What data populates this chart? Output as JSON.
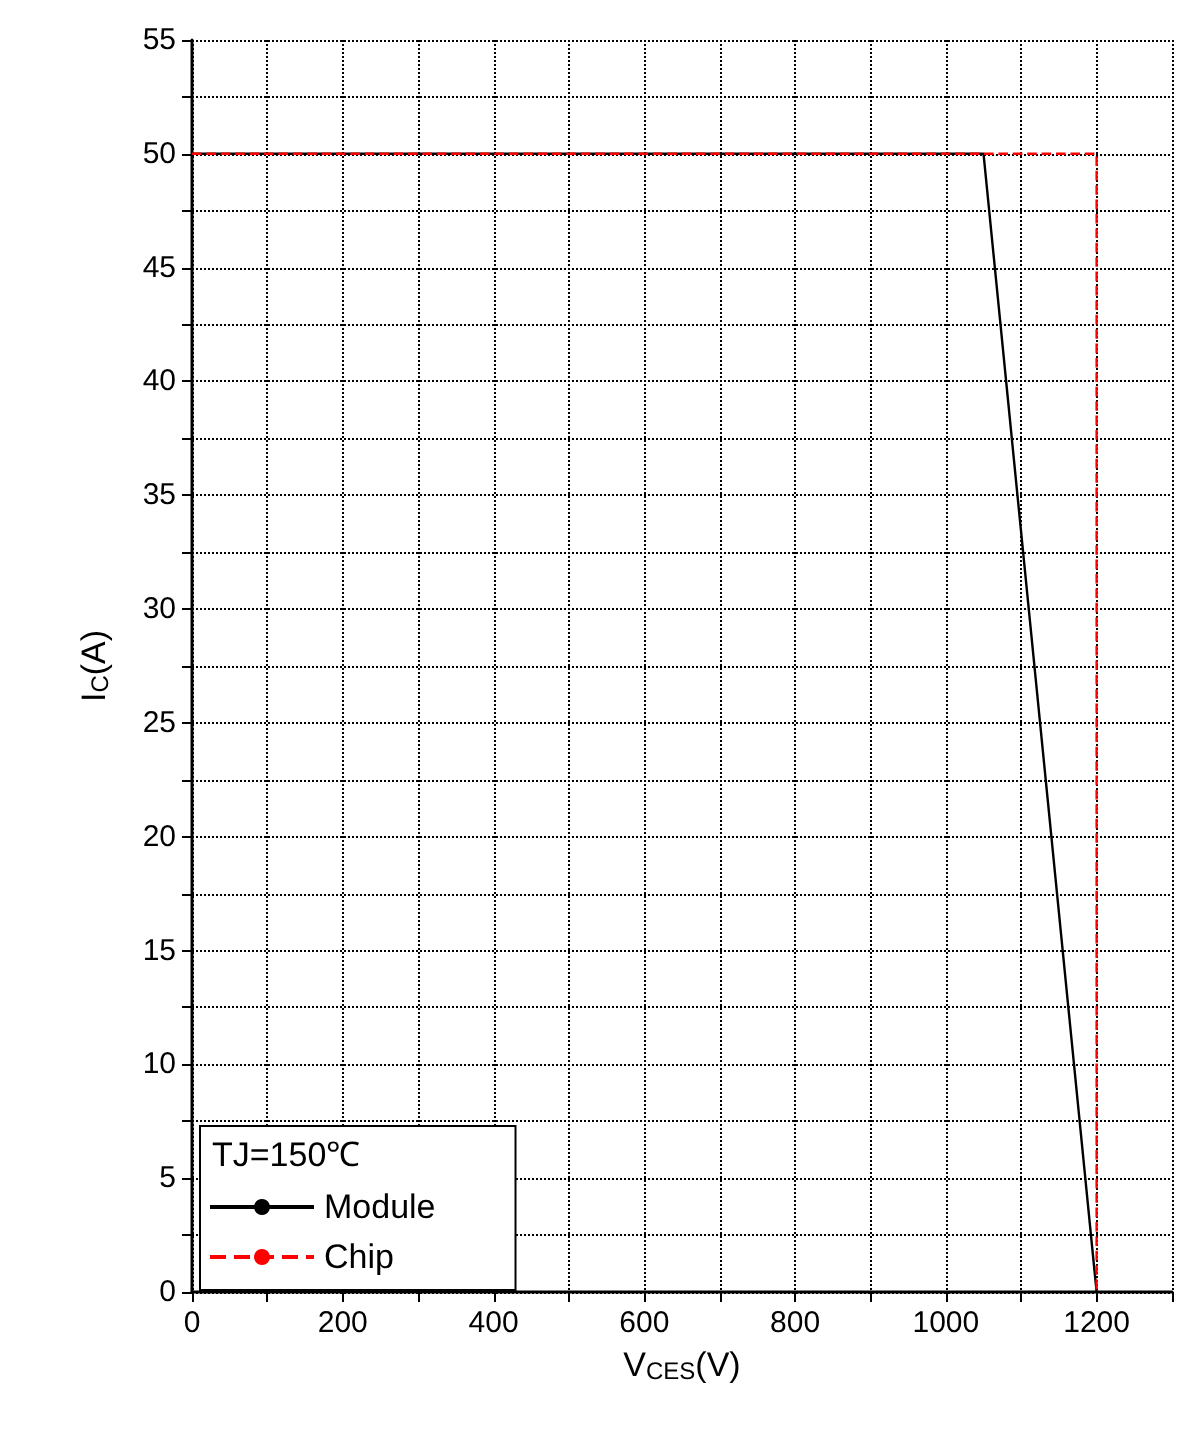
{
  "chart_data": {
    "type": "line",
    "xlabel": "V$_{CES}$(V)",
    "ylabel": "I$_{C}$(A)",
    "legend_title": "TJ=150℃",
    "legend": "bottom left",
    "grid": true,
    "marker": "none",
    "xlim": [
      0,
      1300
    ],
    "xticks": [
      0,
      {
        "value": 100,
        "label": null
      },
      200,
      {
        "value": 300,
        "label": null
      },
      400,
      {
        "value": 500,
        "label": null
      },
      600,
      {
        "value": 700,
        "label": null
      },
      800,
      {
        "value": 900,
        "label": null
      },
      1000,
      {
        "value": 1100,
        "label": null
      },
      1200,
      {
        "value": 1300,
        "label": null
      }
    ],
    "ylim": [
      0,
      55
    ],
    "yticks": [
      0,
      {
        "value": 2.5,
        "label": null
      },
      5,
      {
        "value": 7.5,
        "label": null
      },
      10,
      {
        "value": 12.5,
        "label": null
      },
      15,
      {
        "value": 17.5,
        "label": null
      },
      20,
      {
        "value": 22.5,
        "label": null
      },
      25,
      {
        "value": 27.5,
        "label": null
      },
      30,
      {
        "value": 32.5,
        "label": null
      },
      35,
      {
        "value": 37.5,
        "label": null
      },
      40,
      {
        "value": 42.5,
        "label": null
      },
      45,
      {
        "value": 47.5,
        "label": null
      },
      50,
      {
        "value": 52.5,
        "label": null
      },
      55
    ],
    "series": [
      {
        "name": "Module",
        "color": "#000000",
        "line_style": "solid",
        "x": [
          0,
          1050,
          1200
        ],
        "values": [
          50,
          50,
          0
        ]
      },
      {
        "name": "Chip",
        "color": "#ff0000",
        "line_style": "dashed",
        "x": [
          0,
          1200,
          1200
        ],
        "values": [
          50,
          50,
          0
        ]
      }
    ]
  }
}
